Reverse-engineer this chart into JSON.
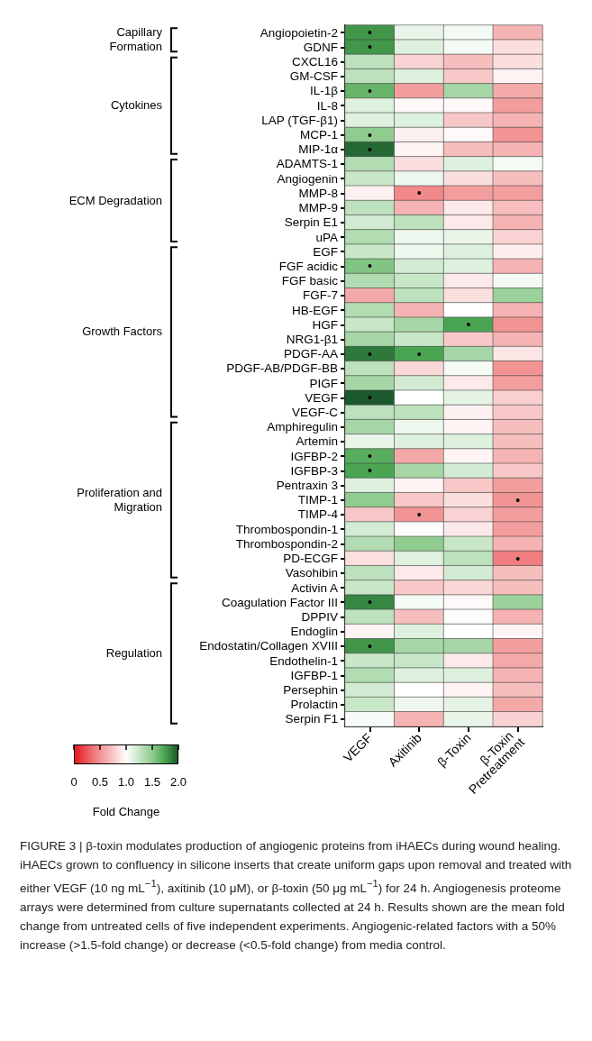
{
  "chart_data": {
    "type": "heatmap",
    "categories": [
      "VEGF",
      "Axitinib",
      "β-Toxin",
      "β-Toxin Pretreatment"
    ],
    "y_categories": [
      "Angiopoietin-2",
      "GDNF",
      "CXCL16",
      "GM-CSF",
      "IL-1β",
      "IL-8",
      "LAP (TGF-β1)",
      "MCP-1",
      "MIP-1α",
      "ADAMTS-1",
      "Angiogenin",
      "MMP-8",
      "MMP-9",
      "Serpin E1",
      "uPA",
      "EGF",
      "FGF acidic",
      "FGF basic",
      "FGF-7",
      "HB-EGF",
      "HGF",
      "NRG1-β1",
      "PDGF-AA",
      "PDGF-AB/PDGF-BB",
      "PIGF",
      "VEGF",
      "VEGF-C",
      "Amphiregulin",
      "Artemin",
      "IGFBP-2",
      "IGFBP-3",
      "Pentraxin 3",
      "TIMP-1",
      "TIMP-4",
      "Thrombospondin-1",
      "Thrombospondin-2",
      "PD-ECGF",
      "Vasohibin",
      "Activin A",
      "Coagulation Factor III",
      "DPPIV",
      "Endoglin",
      "Endostatin/Collagen XVIII",
      "Endothelin-1",
      "IGFBP-1",
      "Persephin",
      "Prolactin",
      "Serpin F1"
    ],
    "cells": [
      [
        1.8,
        1.1,
        1.05,
        0.65
      ],
      [
        1.8,
        1.15,
        1.05,
        0.85
      ],
      [
        1.3,
        0.8,
        0.7,
        0.85
      ],
      [
        1.3,
        1.15,
        0.75,
        0.95
      ],
      [
        1.65,
        0.55,
        1.4,
        0.6
      ],
      [
        1.15,
        0.97,
        0.97,
        0.55
      ],
      [
        1.15,
        1.15,
        0.75,
        0.65
      ],
      [
        1.5,
        0.93,
        0.97,
        0.5
      ],
      [
        1.95,
        0.95,
        0.7,
        0.65
      ],
      [
        1.35,
        0.85,
        1.15,
        1.05
      ],
      [
        1.25,
        1.08,
        0.85,
        0.7
      ],
      [
        0.93,
        0.45,
        0.55,
        0.55
      ],
      [
        1.3,
        0.65,
        0.9,
        0.7
      ],
      [
        1.2,
        1.3,
        0.9,
        0.65
      ],
      [
        1.35,
        1.08,
        1.1,
        0.8
      ],
      [
        1.25,
        1.08,
        1.15,
        0.92
      ],
      [
        1.55,
        1.2,
        1.15,
        0.65
      ],
      [
        1.35,
        1.25,
        0.9,
        1.05
      ],
      [
        0.6,
        1.3,
        0.85,
        1.45
      ],
      [
        1.35,
        0.65,
        1.0,
        0.65
      ],
      [
        1.25,
        1.4,
        1.75,
        0.5
      ],
      [
        1.4,
        1.25,
        0.75,
        0.65
      ],
      [
        1.9,
        1.75,
        1.4,
        0.88
      ],
      [
        1.3,
        0.82,
        1.05,
        0.5
      ],
      [
        1.4,
        1.2,
        0.9,
        0.55
      ],
      [
        2.0,
        1.0,
        1.12,
        0.78
      ],
      [
        1.3,
        1.3,
        0.93,
        0.75
      ],
      [
        1.4,
        1.08,
        0.95,
        0.7
      ],
      [
        1.1,
        1.15,
        1.15,
        0.7
      ],
      [
        1.7,
        0.6,
        0.95,
        0.65
      ],
      [
        1.75,
        1.4,
        1.2,
        0.75
      ],
      [
        1.15,
        0.95,
        0.75,
        0.55
      ],
      [
        1.5,
        0.75,
        0.85,
        0.5
      ],
      [
        0.75,
        0.5,
        0.8,
        0.55
      ],
      [
        1.2,
        0.98,
        0.9,
        0.55
      ],
      [
        1.35,
        1.5,
        1.25,
        0.65
      ],
      [
        0.85,
        1.15,
        1.3,
        0.4
      ],
      [
        1.3,
        0.9,
        1.2,
        0.7
      ],
      [
        1.25,
        0.75,
        0.82,
        0.7
      ],
      [
        1.85,
        1.05,
        0.97,
        1.45
      ],
      [
        1.3,
        0.7,
        1.02,
        0.65
      ],
      [
        0.95,
        1.15,
        1.0,
        0.95
      ],
      [
        1.8,
        1.4,
        1.4,
        0.55
      ],
      [
        1.25,
        1.25,
        0.9,
        0.6
      ],
      [
        1.35,
        1.15,
        1.15,
        0.65
      ],
      [
        1.2,
        1.0,
        0.95,
        0.7
      ],
      [
        1.25,
        1.08,
        1.12,
        0.6
      ],
      [
        1.03,
        0.65,
        1.1,
        0.8
      ]
    ],
    "cell_labels": [
      [
        "•",
        null,
        null,
        null
      ],
      [
        "•",
        null,
        null,
        null
      ],
      [
        null,
        null,
        null,
        null
      ],
      [
        null,
        null,
        null,
        null
      ],
      [
        "•",
        null,
        null,
        null
      ],
      [
        null,
        null,
        null,
        null
      ],
      [
        null,
        null,
        null,
        null
      ],
      [
        "•",
        null,
        null,
        null
      ],
      [
        "•",
        null,
        null,
        null
      ],
      [
        null,
        null,
        null,
        null
      ],
      [
        null,
        null,
        null,
        null
      ],
      [
        null,
        "•",
        null,
        null
      ],
      [
        null,
        null,
        null,
        null
      ],
      [
        null,
        null,
        null,
        null
      ],
      [
        null,
        null,
        null,
        null
      ],
      [
        null,
        null,
        null,
        null
      ],
      [
        "•",
        null,
        null,
        null
      ],
      [
        null,
        null,
        null,
        null
      ],
      [
        null,
        null,
        null,
        null
      ],
      [
        null,
        null,
        null,
        null
      ],
      [
        null,
        null,
        "•",
        null
      ],
      [
        null,
        null,
        null,
        null
      ],
      [
        "•",
        "•",
        null,
        null
      ],
      [
        null,
        null,
        null,
        null
      ],
      [
        null,
        null,
        null,
        null
      ],
      [
        "•",
        null,
        null,
        null
      ],
      [
        null,
        null,
        null,
        null
      ],
      [
        null,
        null,
        null,
        null
      ],
      [
        null,
        null,
        null,
        null
      ],
      [
        "•",
        null,
        null,
        null
      ],
      [
        "•",
        null,
        null,
        null
      ],
      [
        null,
        null,
        null,
        null
      ],
      [
        null,
        null,
        null,
        "•"
      ],
      [
        null,
        "•",
        null,
        null
      ],
      [
        null,
        null,
        null,
        null
      ],
      [
        null,
        null,
        null,
        null
      ],
      [
        null,
        null,
        null,
        "•"
      ],
      [
        null,
        null,
        null,
        null
      ],
      [
        null,
        null,
        null,
        null
      ],
      [
        "•",
        null,
        null,
        null
      ],
      [
        null,
        null,
        null,
        null
      ],
      [
        null,
        null,
        null,
        null
      ],
      [
        "•",
        null,
        null,
        null
      ],
      [
        null,
        null,
        null,
        null
      ],
      [
        null,
        null,
        null,
        null
      ],
      [
        null,
        null,
        null,
        null
      ],
      [
        null,
        null,
        null,
        null
      ],
      [
        null,
        null,
        null,
        null
      ]
    ],
    "clim": [
      0,
      2
    ],
    "cticks": [
      0,
      0.5,
      {
        "value": 1,
        "label": "1.0"
      },
      1.5,
      {
        "value": 2,
        "label": "2.0"
      }
    ],
    "clabel": "Fold Change",
    "annotations": [
      "Capillary Formation",
      "Cytokines",
      "ECM Degradation",
      "Growth Factors",
      "Proliferation and Migration",
      "Regulation",
      "FIGURE 3 | β-toxin modulates production of angiogenic proteins from iHAECs during wound healing. iHAECs grown to confluency in silicone inserts that create uniform gaps upon removal and treated with either VEGF (10 ng mL$^{−1}$), axitinib (10 μM), or β-toxin (50 μg mL$^{−1}$) for 24 h. Angiogenesis proteome arrays were determined from culture supernatants collected at 24 h. Results shown are the mean fold change from untreated cells of five independent experiments. Angiogenic-related factors with a 50% increase (>1.5-fold change) or decrease (<0.5-fold change) from media control."
    ]
  }
}
